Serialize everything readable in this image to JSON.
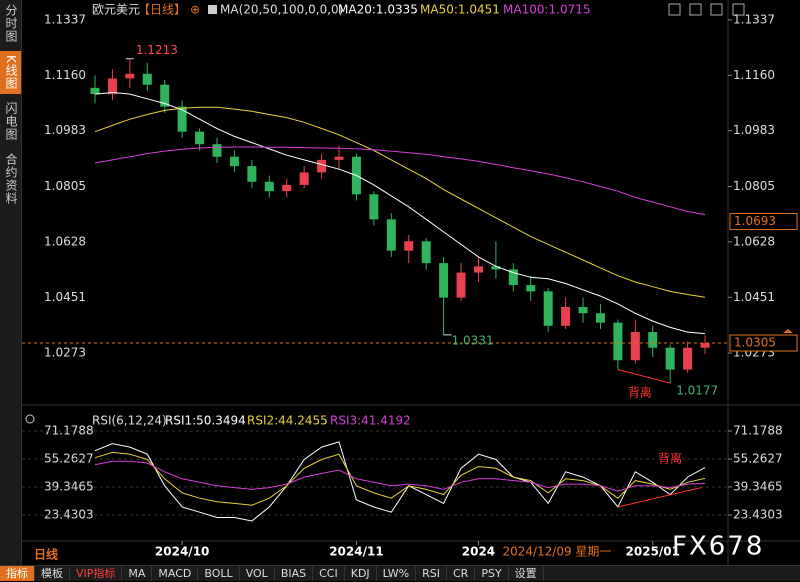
{
  "sidebar": [
    "分时图",
    "K线图",
    "闪电图",
    "合约资料"
  ],
  "period_label": "日线",
  "toolbar": [
    "指标",
    "模板",
    "VIP指标",
    "MA",
    "MACD",
    "BOLL",
    "VOL",
    "BIAS",
    "CCI",
    "KDJ",
    "LW%",
    "RSI",
    "CR",
    "PSY",
    "设置"
  ],
  "watermark": "FX678",
  "chart_data": [
    {
      "type": "candlestick",
      "title": "欧元美元",
      "period": "【日线】",
      "indicator": "MA(20,50,100,0,0,0)",
      "categories": [
        null,
        null,
        null,
        null,
        null,
        null,
        null,
        null,
        null,
        null,
        null,
        null,
        null,
        null,
        null,
        null,
        null,
        null,
        null,
        null,
        null,
        null,
        null,
        null,
        null,
        null,
        null,
        null,
        null,
        null,
        null,
        null,
        null,
        null,
        null,
        null
      ],
      "open": [
        1.112,
        1.11,
        1.115,
        1.1165,
        1.113,
        1.106,
        1.098,
        1.094,
        1.09,
        1.087,
        1.082,
        1.079,
        1.081,
        1.085,
        1.089,
        1.09,
        1.078,
        1.07,
        1.06,
        1.063,
        1.056,
        1.045,
        1.053,
        1.055,
        1.054,
        1.049,
        1.047,
        1.036,
        1.042,
        1.04,
        1.037,
        1.025,
        1.034,
        1.029,
        1.022,
        1.029
      ],
      "high": [
        1.116,
        1.118,
        1.1213,
        1.12,
        1.1145,
        1.108,
        1.099,
        1.096,
        1.092,
        1.089,
        1.084,
        1.083,
        1.087,
        1.091,
        1.0935,
        1.091,
        1.079,
        1.072,
        1.065,
        1.064,
        1.058,
        1.056,
        1.058,
        1.063,
        1.056,
        1.052,
        1.048,
        1.045,
        1.045,
        1.043,
        1.038,
        1.038,
        1.036,
        1.03,
        1.031,
        1.033
      ],
      "low": [
        1.107,
        1.108,
        1.112,
        1.111,
        1.104,
        1.096,
        1.092,
        1.088,
        1.085,
        1.08,
        1.077,
        1.077,
        1.08,
        1.083,
        1.086,
        1.076,
        1.068,
        1.058,
        1.056,
        1.054,
        1.0331,
        1.044,
        1.05,
        1.051,
        1.047,
        1.044,
        1.034,
        1.035,
        1.037,
        1.035,
        1.022,
        1.024,
        1.026,
        1.0177,
        1.021,
        1.027
      ],
      "close": [
        1.11,
        1.115,
        1.1165,
        1.113,
        1.106,
        1.098,
        1.094,
        1.09,
        1.087,
        1.082,
        1.079,
        1.081,
        1.085,
        1.089,
        1.09,
        1.078,
        1.07,
        1.06,
        1.063,
        1.056,
        1.045,
        1.053,
        1.055,
        1.054,
        1.049,
        1.047,
        1.036,
        1.042,
        1.04,
        1.037,
        1.025,
        1.034,
        1.029,
        1.022,
        1.029,
        1.0305
      ],
      "up_color": "#e8404f",
      "down_color": "#2fb35d",
      "series": [
        {
          "name": "MA20:1.0335",
          "color": "#ffffff",
          "values": [
            1.11,
            1.1105,
            1.11,
            1.1085,
            1.107,
            1.105,
            1.102,
            1.099,
            1.0965,
            1.0945,
            1.0925,
            1.0905,
            1.089,
            1.0875,
            1.086,
            1.084,
            1.081,
            1.0775,
            1.074,
            1.07,
            1.066,
            1.062,
            1.058,
            1.055,
            1.053,
            1.0515,
            1.051,
            1.0495,
            1.0475,
            1.0455,
            1.043,
            1.04,
            1.0375,
            1.0355,
            1.034,
            1.0335
          ]
        },
        {
          "name": "MA50:1.0451",
          "color": "#e6d23a",
          "values": [
            1.098,
            1.1,
            1.102,
            1.1035,
            1.1048,
            1.1055,
            1.1058,
            1.1058,
            1.1052,
            1.1045,
            1.1035,
            1.1025,
            1.101,
            1.099,
            1.097,
            1.0945,
            1.092,
            1.089,
            1.086,
            1.083,
            1.0795,
            1.0765,
            1.0735,
            1.0705,
            1.0675,
            1.0645,
            1.062,
            1.0595,
            1.057,
            1.0545,
            1.052,
            1.05,
            1.0485,
            1.047,
            1.046,
            1.0451
          ]
        },
        {
          "name": "MA100:1.0715",
          "color": "#d63fd6",
          "values": [
            1.088,
            1.089,
            1.09,
            1.091,
            1.0918,
            1.0924,
            1.0928,
            1.093,
            1.0931,
            1.0931,
            1.093,
            1.093,
            1.0929,
            1.0928,
            1.0927,
            1.0925,
            1.0922,
            1.0918,
            1.0913,
            1.0908,
            1.09,
            1.0893,
            1.0885,
            1.0875,
            1.0865,
            1.0855,
            1.0845,
            1.0833,
            1.082,
            1.0805,
            1.079,
            1.077,
            1.0755,
            1.074,
            1.0725,
            1.0715
          ]
        }
      ],
      "ylim": [
        1.0123,
        1.1375
      ],
      "yticks": [
        1.1337,
        {
          "value": 1.116,
          "label": "1.1160"
        },
        1.0983,
        1.0805,
        1.0628,
        1.0451,
        1.0273
      ],
      "xticks": [
        {
          "value": 5,
          "label": "2024/10"
        },
        {
          "value": 15,
          "label": "2024/11"
        },
        {
          "value": 22,
          "label": "2024"
        },
        {
          "value": 32,
          "label": "2025/01"
        }
      ],
      "crosshair_label": "2024/12/09 星期一",
      "last_price": 1.0305,
      "reference_price": 1.0693,
      "annotations": [
        "背离"
      ]
    },
    {
      "type": "line",
      "title": "RSI(6,12,24)",
      "series": [
        {
          "name": "RSI1:50.3494",
          "color": "#ffffff",
          "values": [
            60,
            64,
            62,
            58,
            40,
            28,
            25,
            22,
            22,
            20,
            28,
            40,
            55,
            62,
            65,
            32,
            28,
            25,
            40,
            35,
            30,
            50,
            58,
            55,
            45,
            42,
            30,
            48,
            45,
            40,
            28,
            48,
            42,
            35,
            45,
            50.3494
          ]
        },
        {
          "name": "RSI2:44.2455",
          "color": "#e6d23a",
          "values": [
            56,
            59,
            58,
            55,
            44,
            36,
            33,
            31,
            30,
            29,
            33,
            40,
            50,
            55,
            58,
            40,
            36,
            33,
            40,
            38,
            35,
            46,
            51,
            50,
            45,
            43,
            36,
            44,
            43,
            40,
            33,
            43,
            41,
            38,
            42,
            44.2455
          ]
        },
        {
          "name": "RSI3:41.4192",
          "color": "#d63fd6",
          "values": [
            52,
            54,
            54,
            53,
            48,
            44,
            42,
            40,
            39,
            38,
            39,
            41,
            45,
            47,
            49,
            44,
            42,
            40,
            41,
            40,
            38,
            42,
            44,
            44,
            43,
            42,
            39,
            41,
            41,
            40,
            37,
            40,
            40,
            39,
            41,
            41.4192
          ]
        }
      ],
      "ylim": [
        9.22,
        77.43
      ],
      "yticks": [
        71.1788,
        55.2627,
        39.3465,
        23.4303
      ],
      "annotations": [
        "背离"
      ]
    }
  ]
}
